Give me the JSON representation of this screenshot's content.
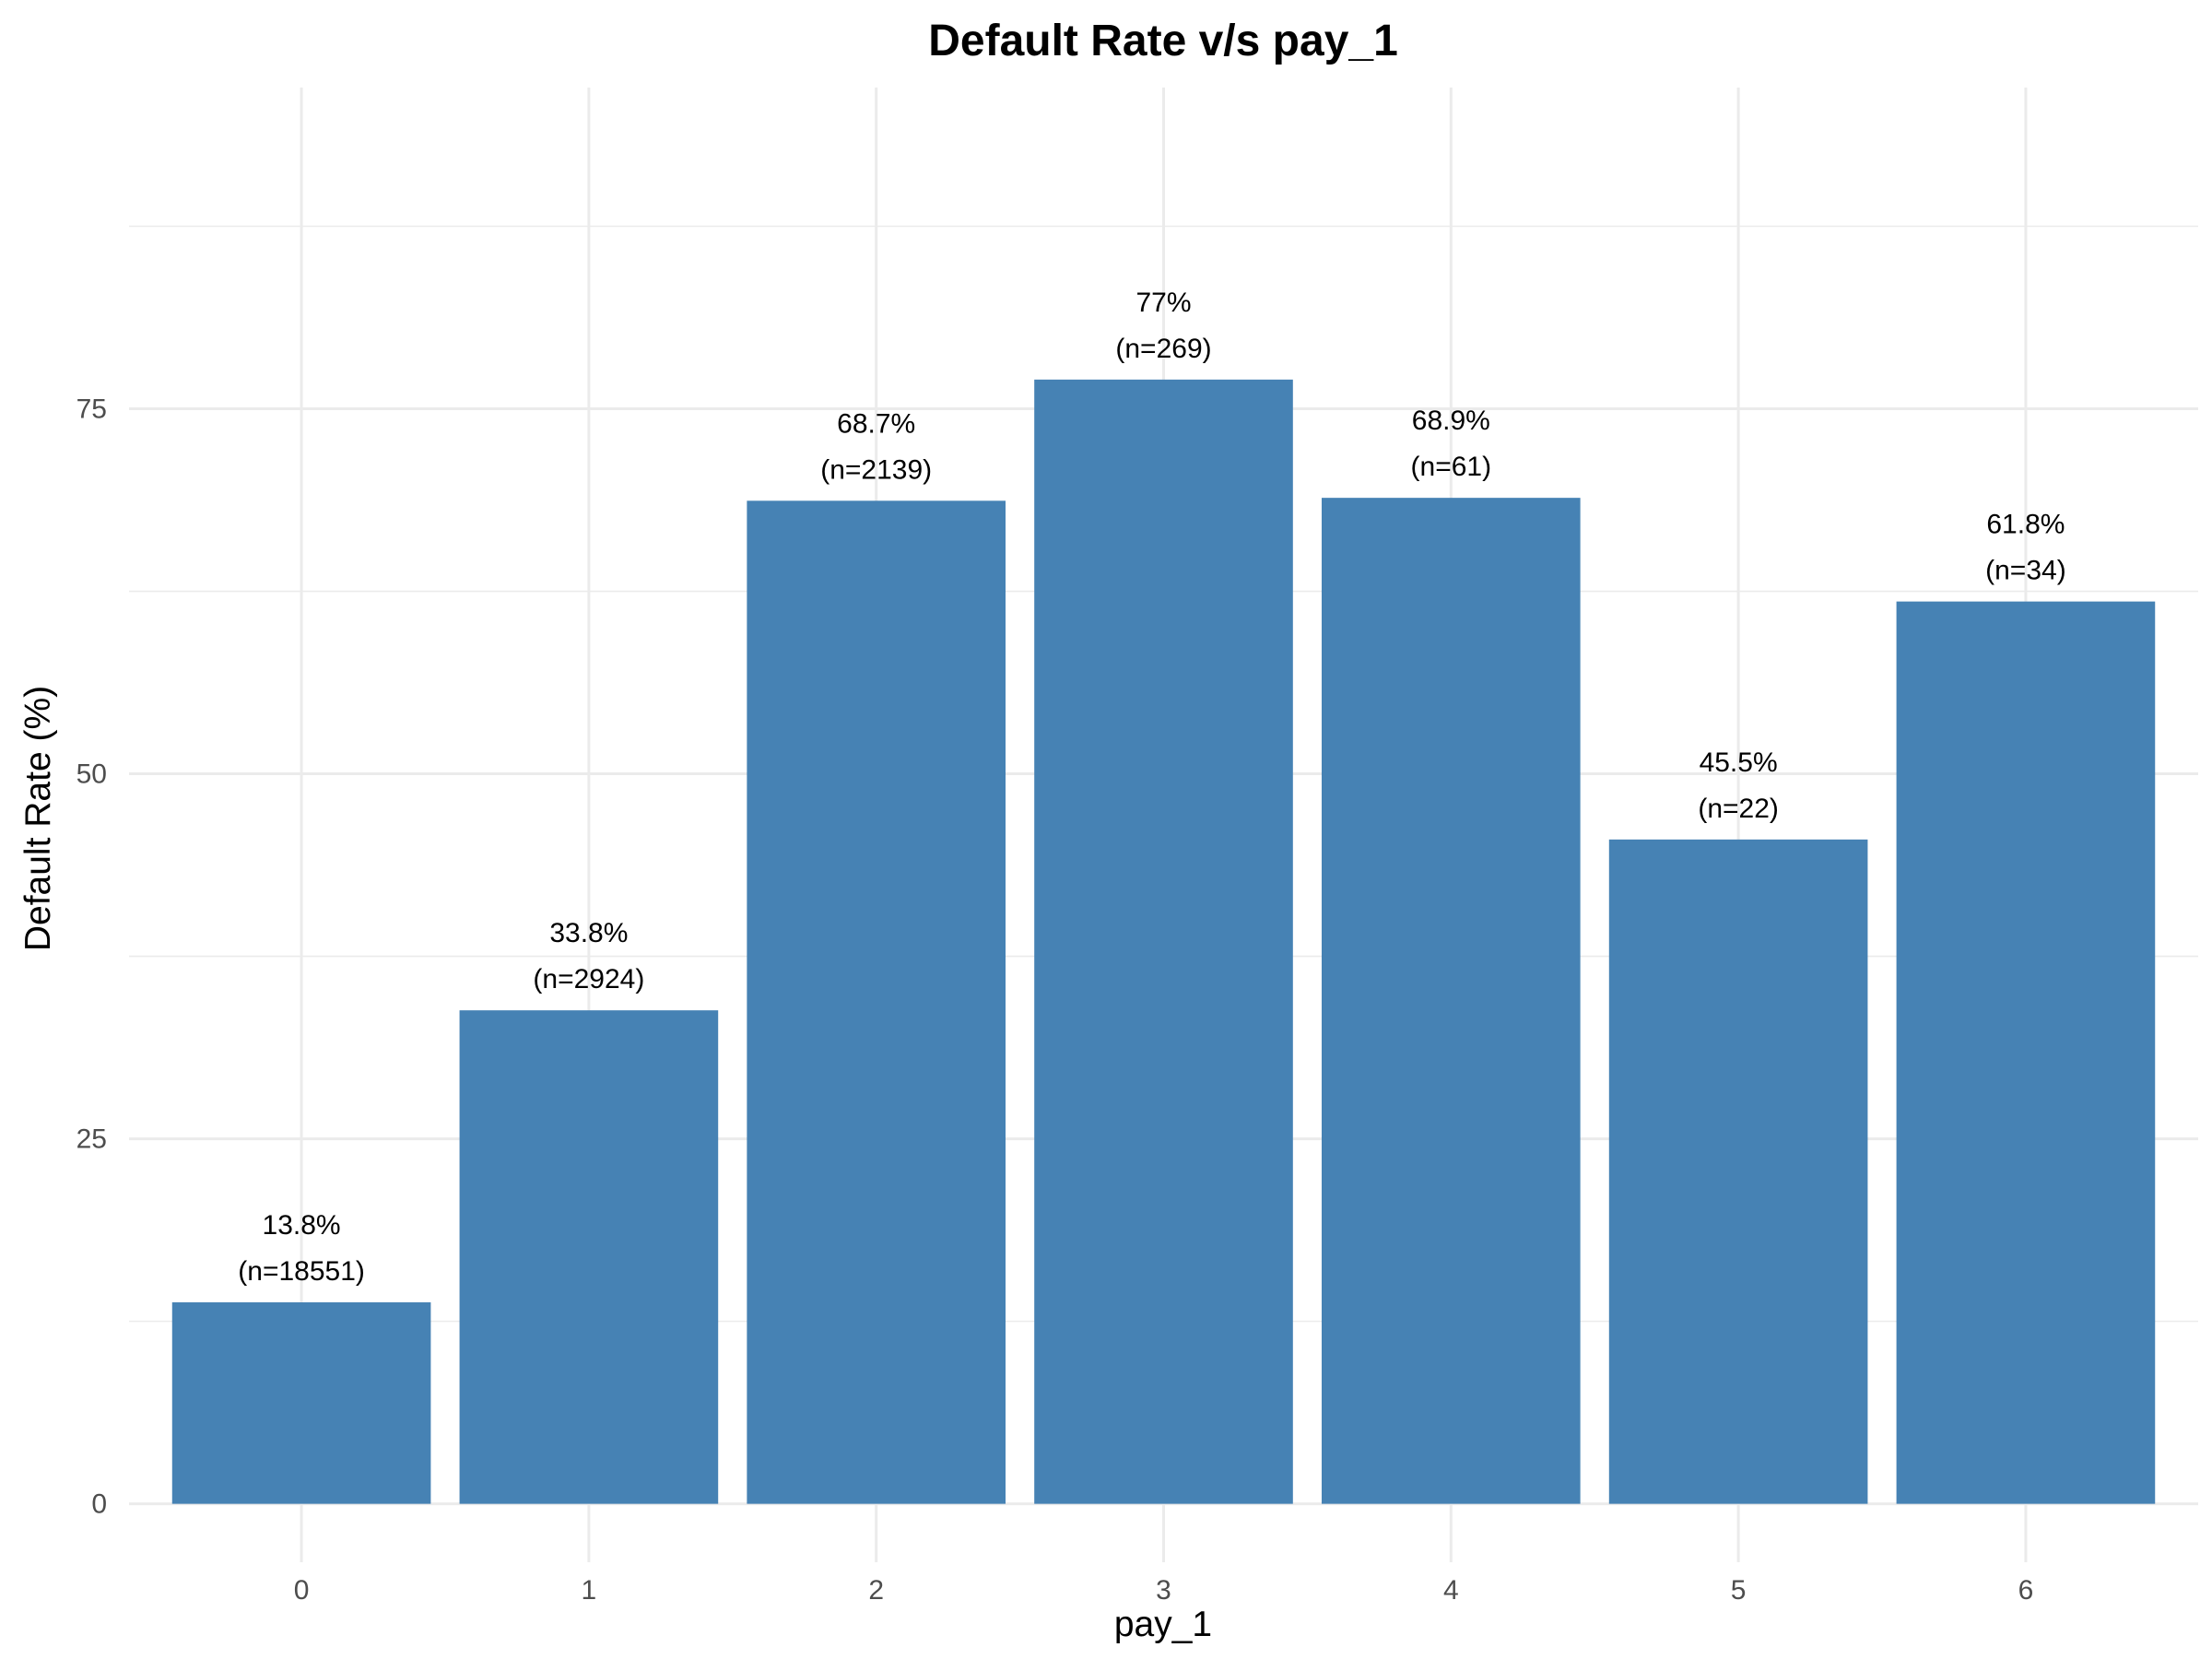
{
  "chart_data": {
    "type": "bar",
    "title": "Default Rate v/s pay_1",
    "xlabel": "pay_1",
    "ylabel": "Default Rate (%)",
    "categories": [
      "0",
      "1",
      "2",
      "3",
      "4",
      "5",
      "6"
    ],
    "values": [
      13.8,
      33.8,
      68.7,
      77.0,
      68.9,
      45.5,
      61.8
    ],
    "value_labels": [
      "13.8%",
      "33.8%",
      "68.7%",
      "77%",
      "68.9%",
      "45.5%",
      "61.8%"
    ],
    "count_labels": [
      "(n=18551)",
      "(n=2924)",
      "(n=2139)",
      "(n=269)",
      "(n=61)",
      "(n=22)",
      "(n=34)"
    ],
    "y_ticks": [
      0,
      25,
      50,
      75
    ],
    "y_tick_labels": [
      "0",
      "25",
      "50",
      "75"
    ],
    "ylim": [
      -4,
      97
    ],
    "grid": true,
    "legend": "none",
    "bar_color": "#4682b4"
  }
}
